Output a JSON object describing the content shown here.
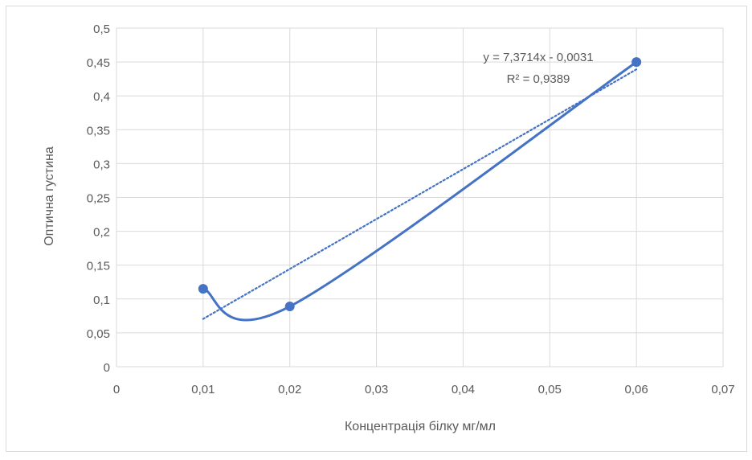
{
  "chart_data": {
    "type": "scatter",
    "title": "",
    "xlabel": "Концентрація білку мг/мл",
    "ylabel": "Оптична густина",
    "xlim": [
      0,
      0.07
    ],
    "ylim": [
      0,
      0.5
    ],
    "x_ticks": [
      0,
      0.01,
      0.02,
      0.03,
      0.04,
      0.05,
      0.06,
      0.07
    ],
    "y_ticks": [
      0,
      0.05,
      0.1,
      0.15,
      0.2,
      0.25,
      0.3,
      0.35,
      0.4,
      0.45,
      0.5
    ],
    "x_tick_labels": [
      "0",
      "0,01",
      "0,02",
      "0,03",
      "0,04",
      "0,05",
      "0,06",
      "0,07"
    ],
    "y_tick_labels": [
      "0",
      "0,05",
      "0,1",
      "0,15",
      "0,2",
      "0,25",
      "0,3",
      "0,35",
      "0,4",
      "0,45",
      "0,5"
    ],
    "grid": true,
    "legend": "none",
    "series": [
      {
        "x": [
          0.01,
          0.02,
          0.06
        ],
        "y": [
          0.115,
          0.089,
          0.45
        ],
        "color": "#4472c4",
        "line": "smooth"
      }
    ],
    "trendline": {
      "type": "linear",
      "slope": 7.3714,
      "intercept": -0.0031,
      "x_range": [
        0.01,
        0.06
      ],
      "color": "#4472c4",
      "style": "dotted",
      "equation_label": "y = 7,3714x - 0,0031",
      "r2_label": "R² = 0,9389"
    }
  }
}
